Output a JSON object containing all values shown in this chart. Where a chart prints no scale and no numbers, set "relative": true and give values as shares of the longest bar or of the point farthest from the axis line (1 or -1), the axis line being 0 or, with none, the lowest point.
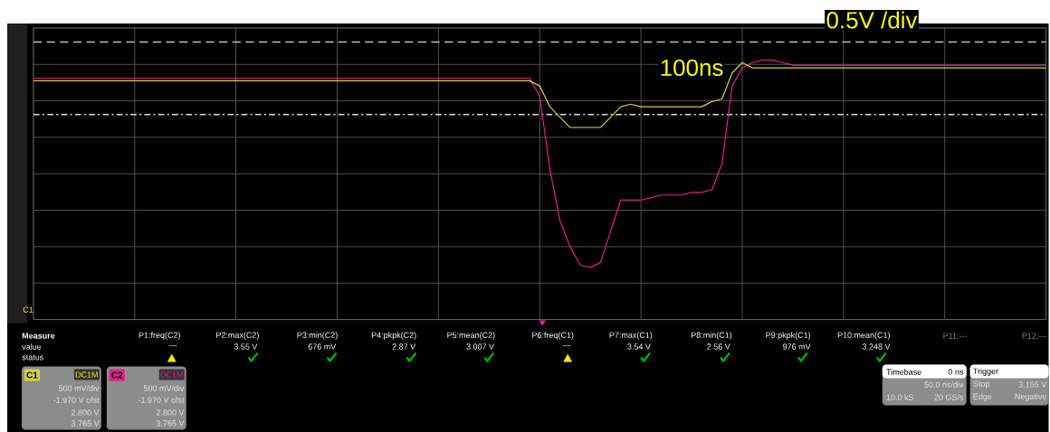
{
  "chart_data": {
    "type": "line",
    "relative": true,
    "grid": true,
    "legend": "bottom left",
    "categories": [
      null,
      null,
      null,
      null,
      null,
      null,
      null,
      null,
      null,
      null,
      null,
      null,
      null,
      null,
      null,
      null,
      null,
      null,
      null,
      null,
      null,
      null,
      null,
      null,
      null,
      null,
      null,
      null,
      null,
      null,
      null,
      null,
      null,
      null,
      null,
      null,
      null,
      null,
      null,
      null,
      null,
      null,
      null,
      null,
      null,
      null,
      null,
      null,
      null,
      null,
      null,
      null,
      null,
      null,
      null,
      null,
      null,
      null,
      null,
      null,
      null,
      null,
      null,
      null,
      null,
      null,
      null,
      null,
      null,
      null,
      null,
      null,
      null,
      null,
      null,
      null,
      null,
      null,
      null,
      null,
      null,
      null,
      null,
      null,
      null,
      null,
      null,
      null,
      null,
      null,
      null,
      null,
      null,
      null,
      null,
      null,
      null,
      null,
      null,
      null,
      null
    ],
    "series": [
      {
        "name": "C1",
        "color": "#d2d23c",
        "values": [
          0.92,
          0.92,
          0.92,
          0.92,
          0.92,
          0.92,
          0.92,
          0.92,
          0.92,
          0.92,
          0.92,
          0.92,
          0.92,
          0.92,
          0.92,
          0.92,
          0.92,
          0.92,
          0.92,
          0.92,
          0.92,
          0.92,
          0.92,
          0.92,
          0.92,
          0.92,
          0.92,
          0.92,
          0.92,
          0.92,
          0.92,
          0.92,
          0.92,
          0.92,
          0.92,
          0.92,
          0.92,
          0.92,
          0.92,
          0.92,
          0.92,
          0.92,
          0.92,
          0.92,
          0.92,
          0.92,
          0.92,
          0.92,
          0.92,
          0.92,
          0.9,
          0.82,
          0.78,
          0.74,
          0.74,
          0.74,
          0.74,
          0.78,
          0.82,
          0.83,
          0.82,
          0.82,
          0.82,
          0.82,
          0.82,
          0.82,
          0.82,
          0.84,
          0.85,
          0.95,
          0.99,
          0.97,
          0.97,
          0.97,
          0.97,
          0.97,
          0.97,
          0.97,
          0.97,
          0.97,
          0.97,
          0.97,
          0.97,
          0.97,
          0.97,
          0.97,
          0.97,
          0.97,
          0.97,
          0.97,
          0.97,
          0.97,
          0.97,
          0.97,
          0.97,
          0.97,
          0.97,
          0.97,
          0.97,
          0.97,
          0.97
        ]
      },
      {
        "name": "C2",
        "color": "#e0208c",
        "values": [
          0.93,
          0.93,
          0.93,
          0.93,
          0.93,
          0.93,
          0.93,
          0.93,
          0.93,
          0.93,
          0.93,
          0.93,
          0.93,
          0.93,
          0.93,
          0.93,
          0.93,
          0.93,
          0.93,
          0.93,
          0.93,
          0.93,
          0.93,
          0.93,
          0.93,
          0.93,
          0.93,
          0.93,
          0.93,
          0.93,
          0.93,
          0.93,
          0.93,
          0.93,
          0.93,
          0.93,
          0.93,
          0.93,
          0.93,
          0.93,
          0.93,
          0.93,
          0.93,
          0.93,
          0.93,
          0.93,
          0.93,
          0.93,
          0.93,
          0.93,
          0.86,
          0.58,
          0.38,
          0.28,
          0.21,
          0.2,
          0.22,
          0.34,
          0.46,
          0.46,
          0.46,
          0.47,
          0.48,
          0.48,
          0.48,
          0.49,
          0.49,
          0.5,
          0.6,
          0.9,
          0.97,
          0.99,
          1.0,
          1.0,
          0.99,
          0.98,
          0.98,
          0.98,
          0.98,
          0.98,
          0.98,
          0.98,
          0.98,
          0.98,
          0.98,
          0.98,
          0.98,
          0.98,
          0.98,
          0.98,
          0.98,
          0.98,
          0.98,
          0.98,
          0.98,
          0.98,
          0.98,
          0.98,
          0.98,
          0.98,
          0.98
        ]
      }
    ],
    "ref_lines": [
      {
        "axis": "y",
        "value": 1.07,
        "color": "#bfbfbf",
        "line_style": "dashed"
      },
      {
        "axis": "y",
        "value": 0.79,
        "color": "#d9d9d9",
        "line_style": "dashdot"
      }
    ],
    "annotations": [
      "100ns",
      "0.5V /div",
      "Measure",
      "value",
      "status",
      "P1:freq(C2)",
      "P2:max(C2)",
      "P3:min(C2)",
      "P4:pkpk(C2)",
      "P5:mean(C2)",
      "P6:freq(C1)",
      "P7:max(C1)",
      "P8:min(C1)",
      "P9:pkpk(C1)",
      "P10:mean(C1)",
      "P11:---",
      "P12:---",
      "—",
      "3.55 V",
      "676 mV",
      "2.87 V",
      "3.007 V",
      "—",
      "3.54 V",
      "2.56 V",
      "976 mV",
      "3.248 V",
      "DC1M",
      "500 mV/div",
      "-1.970 V ofst",
      "2.800 V",
      "3.765 V",
      "DC1M",
      "500 mV/div",
      "-1.970 V ofst",
      "2.800 V",
      "3.765 V",
      "Timebase",
      "0 ns",
      "50.0 ns/div",
      "10.0 kS",
      "20 GS/s",
      "Trigger",
      "Stop",
      "3.155 V",
      "Edge",
      "Negative",
      "C1"
    ]
  }
}
